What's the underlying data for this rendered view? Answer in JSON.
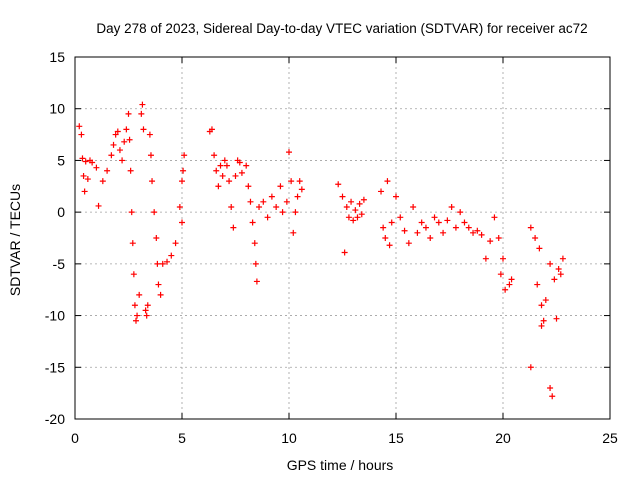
{
  "chart_data": {
    "type": "scatter",
    "title": "Day 278 of 2023, Sidereal Day-to-day VTEC variation (SDTVAR) for receiver ac72",
    "xlabel": "GPS time / hours",
    "ylabel": "SDTVAR / TECUs",
    "xlim": [
      0,
      25
    ],
    "ylim": [
      -20,
      15
    ],
    "xticks": [
      "0",
      "5",
      "10",
      "15",
      "20",
      "25"
    ],
    "yticks": [
      "15",
      "10",
      "5",
      "0",
      "-5",
      "-10",
      "-15",
      "-20"
    ],
    "grid": true,
    "marker": "+",
    "color": "#ff0000",
    "series": [
      {
        "name": "SDTVAR",
        "points": [
          [
            0.2,
            8.3
          ],
          [
            0.3,
            7.5
          ],
          [
            0.35,
            5.2
          ],
          [
            0.4,
            3.5
          ],
          [
            0.45,
            2.0
          ],
          [
            0.5,
            4.9
          ],
          [
            0.6,
            3.2
          ],
          [
            0.7,
            5.0
          ],
          [
            0.8,
            4.8
          ],
          [
            1.0,
            4.3
          ],
          [
            1.1,
            0.6
          ],
          [
            1.3,
            3.0
          ],
          [
            1.5,
            4.0
          ],
          [
            1.7,
            5.5
          ],
          [
            1.8,
            6.5
          ],
          [
            1.9,
            7.5
          ],
          [
            2.0,
            7.8
          ],
          [
            2.1,
            6.0
          ],
          [
            2.2,
            5.0
          ],
          [
            2.3,
            6.8
          ],
          [
            2.4,
            8.0
          ],
          [
            2.5,
            9.5
          ],
          [
            2.55,
            7.0
          ],
          [
            2.6,
            4.0
          ],
          [
            2.65,
            0.0
          ],
          [
            2.7,
            -3.0
          ],
          [
            2.75,
            -6.0
          ],
          [
            2.8,
            -9.0
          ],
          [
            2.85,
            -10.5
          ],
          [
            2.9,
            -10.0
          ],
          [
            3.0,
            -8.0
          ],
          [
            3.1,
            9.5
          ],
          [
            3.15,
            10.4
          ],
          [
            3.2,
            8.0
          ],
          [
            3.3,
            -9.5
          ],
          [
            3.35,
            -10.0
          ],
          [
            3.4,
            -9.0
          ],
          [
            3.5,
            7.5
          ],
          [
            3.55,
            5.5
          ],
          [
            3.6,
            3.0
          ],
          [
            3.7,
            0.0
          ],
          [
            3.8,
            -2.5
          ],
          [
            3.85,
            -5.0
          ],
          [
            3.9,
            -7.0
          ],
          [
            4.0,
            -8.0
          ],
          [
            4.1,
            -5.0
          ],
          [
            4.3,
            -4.8
          ],
          [
            4.5,
            -4.2
          ],
          [
            4.7,
            -3.0
          ],
          [
            4.9,
            0.5
          ],
          [
            5.0,
            3.0
          ],
          [
            5.1,
            5.5
          ],
          [
            5.05,
            4.0
          ],
          [
            5.0,
            -1.0
          ],
          [
            6.3,
            7.8
          ],
          [
            6.4,
            8.0
          ],
          [
            6.5,
            5.5
          ],
          [
            6.6,
            4.0
          ],
          [
            6.7,
            2.5
          ],
          [
            6.8,
            4.5
          ],
          [
            6.9,
            3.5
          ],
          [
            7.0,
            5.0
          ],
          [
            7.1,
            4.5
          ],
          [
            7.2,
            3.0
          ],
          [
            7.3,
            0.5
          ],
          [
            7.4,
            -1.5
          ],
          [
            7.5,
            3.5
          ],
          [
            7.6,
            5.0
          ],
          [
            7.7,
            4.8
          ],
          [
            7.8,
            3.8
          ],
          [
            8.0,
            4.5
          ],
          [
            8.1,
            2.5
          ],
          [
            8.2,
            1.0
          ],
          [
            8.3,
            -1.0
          ],
          [
            8.4,
            -3.0
          ],
          [
            8.45,
            -5.0
          ],
          [
            8.5,
            -6.7
          ],
          [
            8.6,
            0.5
          ],
          [
            8.8,
            1.0
          ],
          [
            9.0,
            -0.5
          ],
          [
            9.2,
            1.5
          ],
          [
            9.4,
            0.5
          ],
          [
            9.6,
            2.5
          ],
          [
            9.7,
            0.0
          ],
          [
            9.9,
            1.0
          ],
          [
            10.0,
            5.8
          ],
          [
            10.1,
            3.0
          ],
          [
            10.2,
            -2.0
          ],
          [
            10.3,
            0.0
          ],
          [
            10.4,
            1.5
          ],
          [
            10.5,
            3.0
          ],
          [
            10.6,
            2.2
          ],
          [
            12.3,
            2.7
          ],
          [
            12.5,
            1.5
          ],
          [
            12.6,
            -3.9
          ],
          [
            12.7,
            0.5
          ],
          [
            12.8,
            -0.5
          ],
          [
            12.9,
            1.0
          ],
          [
            13.0,
            -0.8
          ],
          [
            13.1,
            0.2
          ],
          [
            13.2,
            -0.5
          ],
          [
            13.3,
            0.8
          ],
          [
            13.4,
            -0.2
          ],
          [
            13.5,
            1.2
          ],
          [
            14.3,
            2.0
          ],
          [
            14.4,
            -1.5
          ],
          [
            14.5,
            -2.5
          ],
          [
            14.6,
            3.0
          ],
          [
            14.7,
            -3.2
          ],
          [
            14.8,
            -1.0
          ],
          [
            15.0,
            1.5
          ],
          [
            15.2,
            -0.5
          ],
          [
            15.4,
            -1.8
          ],
          [
            15.6,
            -3.0
          ],
          [
            15.8,
            0.5
          ],
          [
            16.0,
            -2.0
          ],
          [
            16.2,
            -1.0
          ],
          [
            16.4,
            -1.5
          ],
          [
            16.6,
            -2.5
          ],
          [
            16.8,
            -0.5
          ],
          [
            17.0,
            -1.0
          ],
          [
            17.2,
            -2.0
          ],
          [
            17.4,
            -0.8
          ],
          [
            17.6,
            0.5
          ],
          [
            17.8,
            -1.5
          ],
          [
            18.0,
            0.0
          ],
          [
            18.2,
            -1.0
          ],
          [
            18.4,
            -1.5
          ],
          [
            18.6,
            -2.0
          ],
          [
            18.8,
            -1.8
          ],
          [
            19.0,
            -2.2
          ],
          [
            19.2,
            -4.5
          ],
          [
            19.4,
            -2.8
          ],
          [
            19.6,
            -0.5
          ],
          [
            19.8,
            -2.5
          ],
          [
            19.9,
            -6.0
          ],
          [
            20.0,
            -4.5
          ],
          [
            20.1,
            -7.5
          ],
          [
            20.3,
            -7.0
          ],
          [
            20.4,
            -6.5
          ],
          [
            21.3,
            -1.5
          ],
          [
            21.5,
            -2.5
          ],
          [
            21.7,
            -3.5
          ],
          [
            21.6,
            -7.0
          ],
          [
            21.8,
            -9.0
          ],
          [
            21.9,
            -10.5
          ],
          [
            21.8,
            -11.0
          ],
          [
            21.3,
            -15.0
          ],
          [
            22.0,
            -8.5
          ],
          [
            22.2,
            -5.0
          ],
          [
            22.2,
            -17.0
          ],
          [
            22.3,
            -17.8
          ],
          [
            22.4,
            -6.5
          ],
          [
            22.5,
            -10.3
          ],
          [
            22.6,
            -5.5
          ],
          [
            22.7,
            -6.0
          ],
          [
            22.8,
            -4.5
          ]
        ]
      }
    ]
  }
}
